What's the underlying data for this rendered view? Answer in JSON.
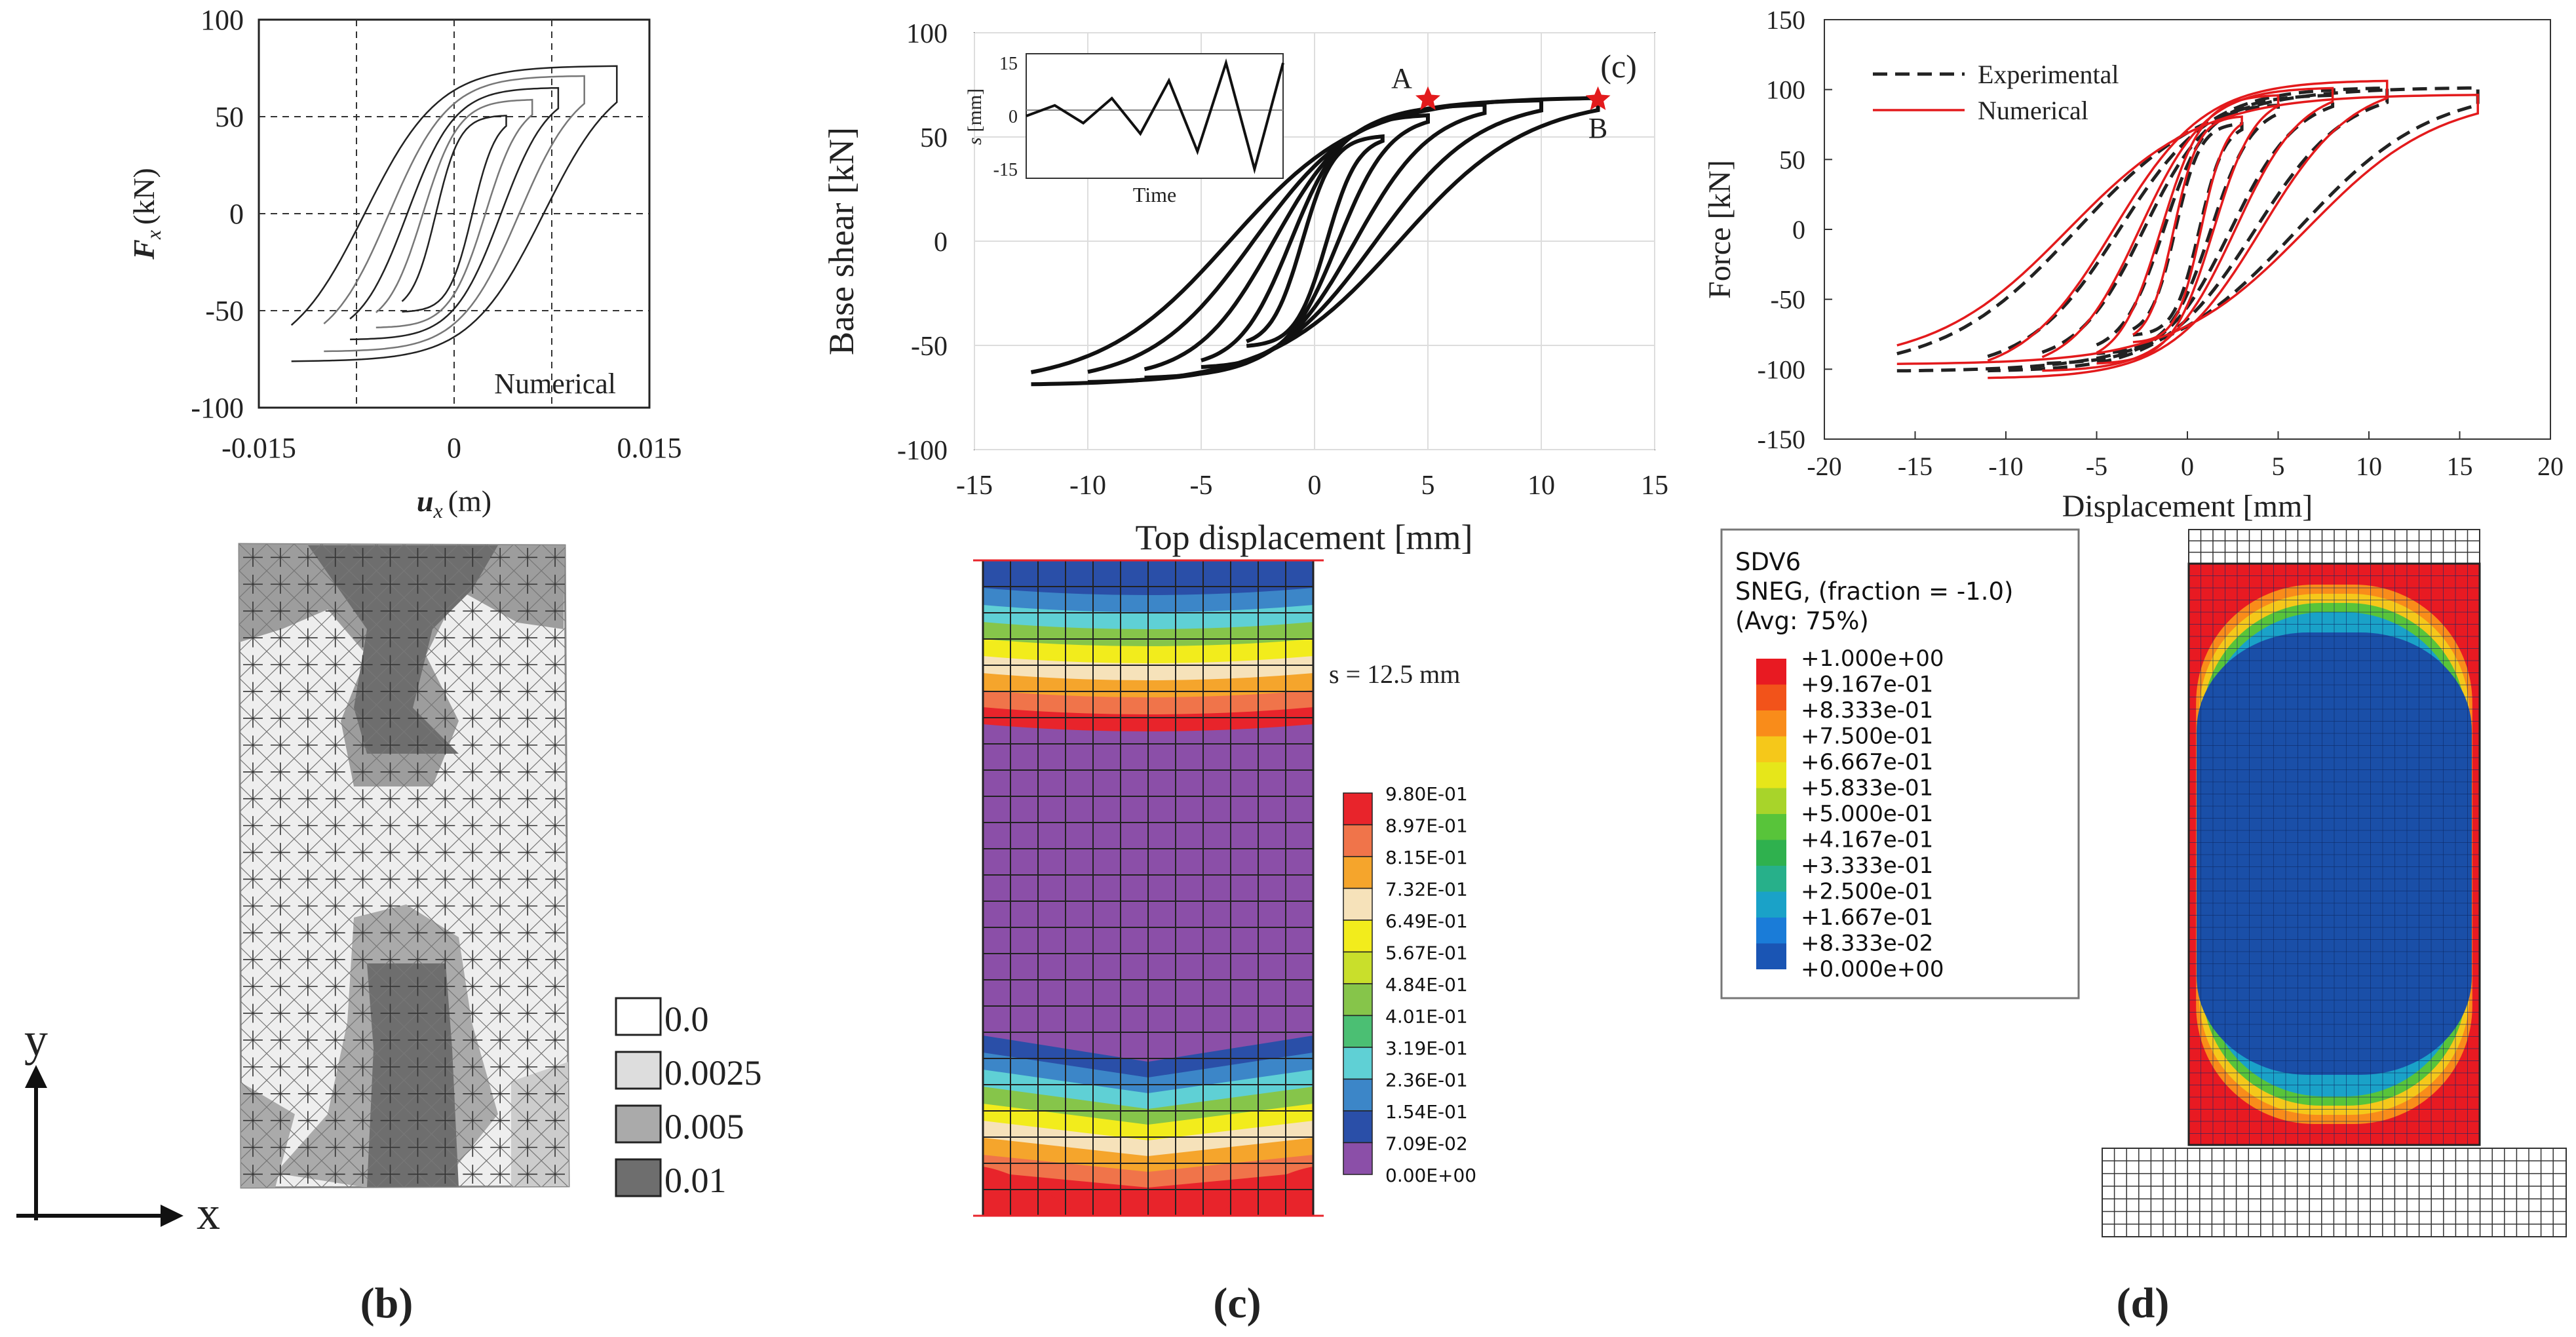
{
  "chart_data": [
    {
      "type": "line",
      "panel": "b-plot",
      "xlabel_var": "u",
      "xlabel_sub": "x",
      "xlabel_unit": "(m)",
      "ylabel_var": "F",
      "ylabel_sub": "x",
      "ylabel_unit": "(kN)",
      "xlim": [
        -0.015,
        0.015
      ],
      "ylim": [
        -100,
        100
      ],
      "xticks": [
        -0.015,
        0,
        0.015
      ],
      "xtick_labels": [
        "-0.015",
        "0",
        "0.015"
      ],
      "ytick_labels": [
        "100",
        "50",
        "0",
        "-50",
        "-100"
      ],
      "yticks": [
        100,
        50,
        0,
        -50,
        -100
      ],
      "grid_x": [
        -0.0075,
        0,
        0.0075
      ],
      "grid_y": [
        50,
        0,
        -50
      ],
      "annotation": "Numerical",
      "cycles": [
        {
          "amp": 0.004,
          "force": 50
        },
        {
          "amp": 0.006,
          "force": 58
        },
        {
          "amp": 0.008,
          "force": 64
        },
        {
          "amp": 0.01,
          "force": 70
        },
        {
          "amp": 0.0125,
          "force": 75
        }
      ]
    },
    {
      "type": "line",
      "panel": "c-plot",
      "xlabel": "Top displacement [mm]",
      "ylabel": "Base shear [kN]",
      "xlim": [
        -15,
        15
      ],
      "ylim": [
        -100,
        100
      ],
      "xticks": [
        -15,
        -10,
        -5,
        0,
        5,
        10,
        15
      ],
      "xtick_labels": [
        "-15",
        "-10",
        "-5",
        "0",
        "5",
        "10",
        "15"
      ],
      "yticks": [
        100,
        50,
        0,
        -50,
        -100
      ],
      "ytick_labels": [
        "100",
        "50",
        "0",
        "-50",
        "-100"
      ],
      "panel_label": "(c)",
      "points": [
        {
          "label": "A",
          "x": 5,
          "y": 68
        },
        {
          "label": "B",
          "x": 12.5,
          "y": 68
        }
      ],
      "cycles": [
        {
          "amp": 3,
          "force": 50
        },
        {
          "amp": 5,
          "force": 60
        },
        {
          "amp": 7.5,
          "force": 65
        },
        {
          "amp": 10,
          "force": 67
        },
        {
          "amp": 12.5,
          "force": 68
        }
      ],
      "inset": {
        "ylabel_var": "s",
        "ylabel_unit": "[mm]",
        "xlabel": "Time",
        "ylim": [
          -15,
          15
        ],
        "yticks": [
          15,
          0,
          -15
        ],
        "ytick_labels": [
          "15",
          "0",
          "-15"
        ],
        "signal": [
          0,
          3,
          -2,
          5,
          -5,
          10,
          -10,
          15,
          -15,
          15
        ]
      }
    },
    {
      "type": "line",
      "panel": "d-plot",
      "xlabel": "Displacement [mm]",
      "ylabel": "Force [kN]",
      "xlim": [
        -20,
        20
      ],
      "ylim": [
        -150,
        150
      ],
      "xticks": [
        -20,
        -15,
        -10,
        -5,
        0,
        5,
        10,
        15,
        20
      ],
      "xtick_labels": [
        "-20",
        "-15",
        "-10",
        "-5",
        "0",
        "5",
        "10",
        "15",
        "20"
      ],
      "yticks": [
        150,
        100,
        50,
        0,
        -50,
        -100,
        -150
      ],
      "ytick_labels": [
        "150",
        "100",
        "50",
        "0",
        "-50",
        "-100",
        "-150"
      ],
      "series": [
        {
          "name": "Experimental",
          "style": "dashed",
          "color": "#222222",
          "cycles": [
            {
              "amp": 3,
              "force": 75
            },
            {
              "amp": 5,
              "force": 88
            },
            {
              "amp": 8,
              "force": 95
            },
            {
              "amp": 11,
              "force": 100
            },
            {
              "amp": 16,
              "force": 100
            }
          ]
        },
        {
          "name": "Numerical",
          "style": "solid",
          "color": "#e31a1c",
          "cycles": [
            {
              "amp": 3,
              "force": 80
            },
            {
              "amp": 5,
              "force": 95
            },
            {
              "amp": 8,
              "force": 100
            },
            {
              "amp": 11,
              "force": 105
            },
            {
              "amp": 16,
              "force": 95
            }
          ]
        }
      ]
    }
  ],
  "legend_b": {
    "entries": [
      {
        "label": "0.0",
        "color": "#ffffff"
      },
      {
        "label": "0.0025",
        "color": "#dddddd"
      },
      {
        "label": "0.005",
        "color": "#aaaaaa"
      },
      {
        "label": "0.01",
        "color": "#6e6e6e"
      }
    ],
    "axis_y": "y",
    "axis_x": "x"
  },
  "legend_c": {
    "annotation": "s = 12.5 mm",
    "labels": [
      "9.80E-01",
      "8.97E-01",
      "8.15E-01",
      "7.32E-01",
      "6.49E-01",
      "5.67E-01",
      "4.84E-01",
      "4.01E-01",
      "3.19E-01",
      "2.36E-01",
      "1.54E-01",
      "7.09E-02",
      "0.00E+00"
    ],
    "colors": [
      "#e8242b",
      "#f0744a",
      "#f5a52c",
      "#f6e2ba",
      "#f2ec1c",
      "#c9df2b",
      "#86c54a",
      "#4bbf73",
      "#5fd0d5",
      "#3c86c8",
      "#2a4fa8",
      "#8b4fa8"
    ]
  },
  "legend_d": {
    "title": [
      "SDV6",
      "SNEG, (fraction = -1.0)",
      "(Avg: 75%)"
    ],
    "labels": [
      "+1.000e+00",
      "+9.167e-01",
      "+8.333e-01",
      "+7.500e-01",
      "+6.667e-01",
      "+5.833e-01",
      "+5.000e-01",
      "+4.167e-01",
      "+3.333e-01",
      "+2.500e-01",
      "+1.667e-01",
      "+8.333e-02",
      "+0.000e+00"
    ],
    "colors": [
      "#e81a22",
      "#f2531a",
      "#f98c1a",
      "#f5c81a",
      "#e6e61a",
      "#a8d42a",
      "#58c43a",
      "#2fb14e",
      "#27b08a",
      "#1aa2c8",
      "#1a7cd8",
      "#1a55b4"
    ]
  },
  "contour_c_bands": [
    "#e8242b",
    "#f0744a",
    "#f5a52c",
    "#f6e2ba",
    "#f2ec1c",
    "#86c54a",
    "#5fd0d5",
    "#3c86c8",
    "#2a4fa8"
  ],
  "contour_d_colors": {
    "core": "#1a4fa8",
    "ring": [
      "#1aa2c8",
      "#58c43a",
      "#f5c81a",
      "#f98c1a",
      "#e81a22"
    ]
  },
  "captions": {
    "b": "(b)",
    "c": "(c)",
    "d": "(d)"
  }
}
